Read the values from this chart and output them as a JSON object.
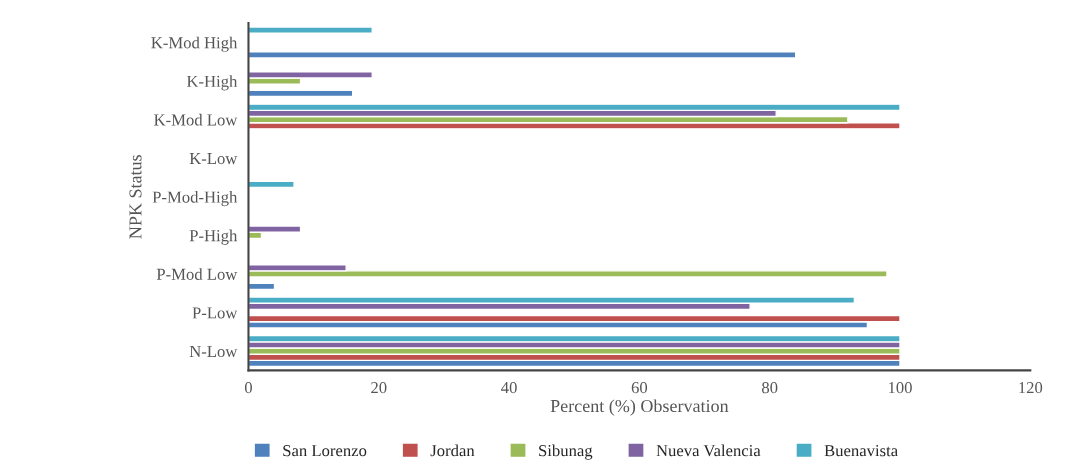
{
  "chart_data": {
    "type": "bar",
    "orientation": "horizontal",
    "ylabel": "NPK Status",
    "xlabel": "Percent (%) Observation",
    "categories": [
      "K-Mod High",
      "K-High",
      "K-Mod Low",
      "K-Low",
      "P-Mod-High",
      "P-High",
      "P-Mod Low",
      "P-Low",
      "N-Low"
    ],
    "series": [
      {
        "name": "San Lorenzo",
        "color": "#4f81bd",
        "values": [
          84,
          16,
          null,
          null,
          null,
          null,
          4,
          95,
          100
        ]
      },
      {
        "name": "Jordan",
        "color": "#c0504d",
        "values": [
          null,
          null,
          100,
          null,
          null,
          null,
          null,
          100,
          100
        ]
      },
      {
        "name": "Sibunag",
        "color": "#9bbb59",
        "values": [
          null,
          8,
          92,
          null,
          null,
          2,
          98,
          null,
          100
        ]
      },
      {
        "name": "Nueva Valencia",
        "color": "#8064a2",
        "values": [
          null,
          19,
          81,
          null,
          null,
          8,
          15,
          77,
          100
        ]
      },
      {
        "name": "Buenavista",
        "color": "#4bacc6",
        "values": [
          19,
          null,
          100,
          null,
          7,
          null,
          null,
          93,
          100
        ]
      }
    ],
    "xlim": [
      0,
      120
    ],
    "xticks": [
      0,
      20,
      40,
      60,
      80,
      100,
      120
    ],
    "grid": false,
    "legend": "bottom"
  }
}
